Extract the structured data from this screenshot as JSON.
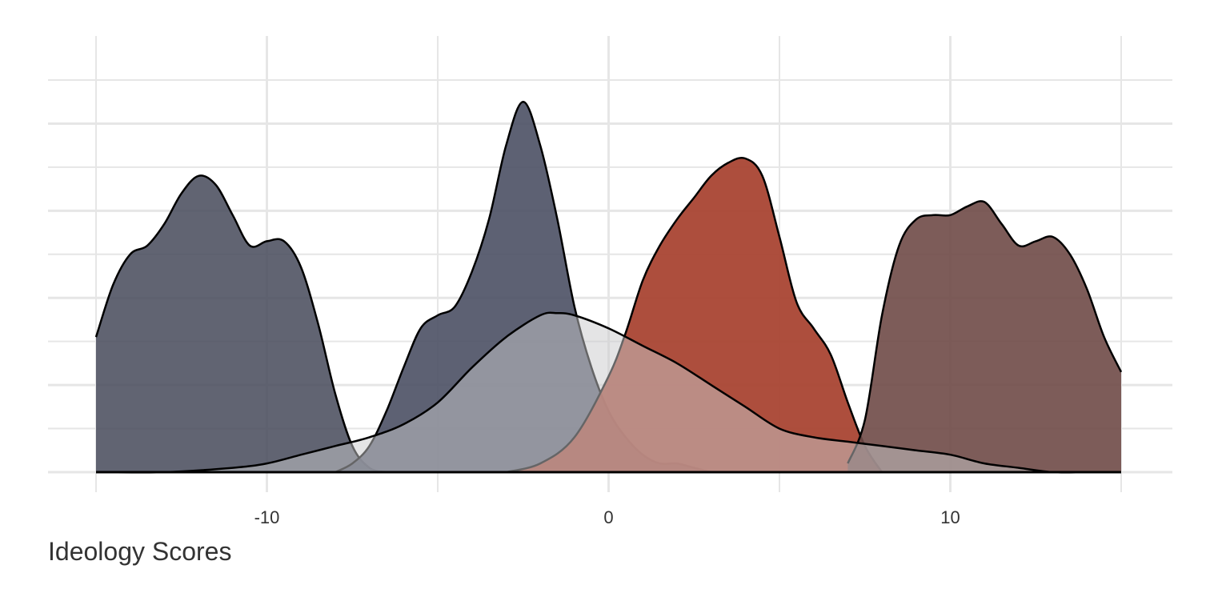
{
  "chart_data": {
    "type": "area",
    "subtype": "overlapping-density",
    "title": "",
    "xlabel": "Ideology Scores",
    "ylabel": "",
    "xlim": [
      -15,
      15
    ],
    "ylim": [
      0,
      0.09
    ],
    "x_ticks": [
      -10,
      0,
      10
    ],
    "x_tick_labels": [
      "-10",
      "0",
      "10"
    ],
    "grid": true,
    "legend": "none",
    "series": [
      {
        "color": "#4b4f5e",
        "opacity": 0.88,
        "x": [
          -15,
          -14.5,
          -14,
          -13.5,
          -13,
          -12.5,
          -12,
          -11.5,
          -11,
          -10.5,
          -10,
          -9.5,
          -9,
          -8.5,
          -8,
          -7.5,
          -7,
          -6.5
        ],
        "y": [
          0.031,
          0.043,
          0.05,
          0.052,
          0.057,
          0.064,
          0.068,
          0.066,
          0.059,
          0.052,
          0.053,
          0.053,
          0.047,
          0.034,
          0.018,
          0.006,
          0.001,
          0
        ]
      },
      {
        "color": "#4b5064",
        "opacity": 0.9,
        "x": [
          -8,
          -7.5,
          -7,
          -6.5,
          -6,
          -5.5,
          -5,
          -4.5,
          -4,
          -3.5,
          -3,
          -2.5,
          -2,
          -1.5,
          -1,
          -0.5,
          0,
          0.5,
          1,
          1.5,
          2,
          2.5,
          3
        ],
        "y": [
          0,
          0.002,
          0.006,
          0.014,
          0.024,
          0.033,
          0.036,
          0.038,
          0.046,
          0.058,
          0.075,
          0.085,
          0.075,
          0.058,
          0.038,
          0.024,
          0.014,
          0.008,
          0.004,
          0.002,
          0.002,
          0.001,
          0
        ]
      },
      {
        "color": "#a94433",
        "opacity": 0.95,
        "x": [
          -3,
          -2,
          -1,
          0,
          0.5,
          1,
          1.5,
          2,
          2.5,
          3,
          3.5,
          4,
          4.5,
          5,
          5.5,
          6,
          6.5,
          7,
          7.5,
          8
        ],
        "y": [
          0,
          0.002,
          0.008,
          0.022,
          0.032,
          0.044,
          0.052,
          0.058,
          0.063,
          0.068,
          0.071,
          0.072,
          0.068,
          0.054,
          0.039,
          0.033,
          0.027,
          0.016,
          0.006,
          0
        ],
        "tail_x": [
          8,
          10,
          12,
          14,
          15
        ],
        "tail_y": [
          0,
          0,
          0,
          0,
          0
        ]
      },
      {
        "color": "#6f4a47",
        "opacity": 0.9,
        "x": [
          7,
          7.5,
          8,
          8.5,
          9,
          9.5,
          10,
          10.5,
          11,
          11.5,
          12,
          12.5,
          13,
          13.5,
          14,
          14.5,
          15
        ],
        "y": [
          0.002,
          0.012,
          0.036,
          0.052,
          0.058,
          0.059,
          0.059,
          0.061,
          0.062,
          0.057,
          0.052,
          0.053,
          0.054,
          0.05,
          0.042,
          0.031,
          0.023
        ]
      },
      {
        "color": "#c9c9cc",
        "opacity": 0.5,
        "x": [
          -15,
          -13,
          -11,
          -10,
          -9,
          -8,
          -7,
          -6,
          -5,
          -4,
          -3,
          -2,
          -1.5,
          -1,
          0,
          1,
          2,
          3,
          4,
          5,
          6,
          7,
          8,
          9,
          10,
          11,
          12,
          13,
          14,
          15
        ],
        "y": [
          0,
          0,
          0.001,
          0.002,
          0.004,
          0.006,
          0.008,
          0.011,
          0.016,
          0.024,
          0.031,
          0.036,
          0.0365,
          0.036,
          0.033,
          0.029,
          0.025,
          0.02,
          0.015,
          0.01,
          0.008,
          0.007,
          0.006,
          0.005,
          0.004,
          0.002,
          0.001,
          0,
          0,
          0
        ]
      }
    ]
  }
}
